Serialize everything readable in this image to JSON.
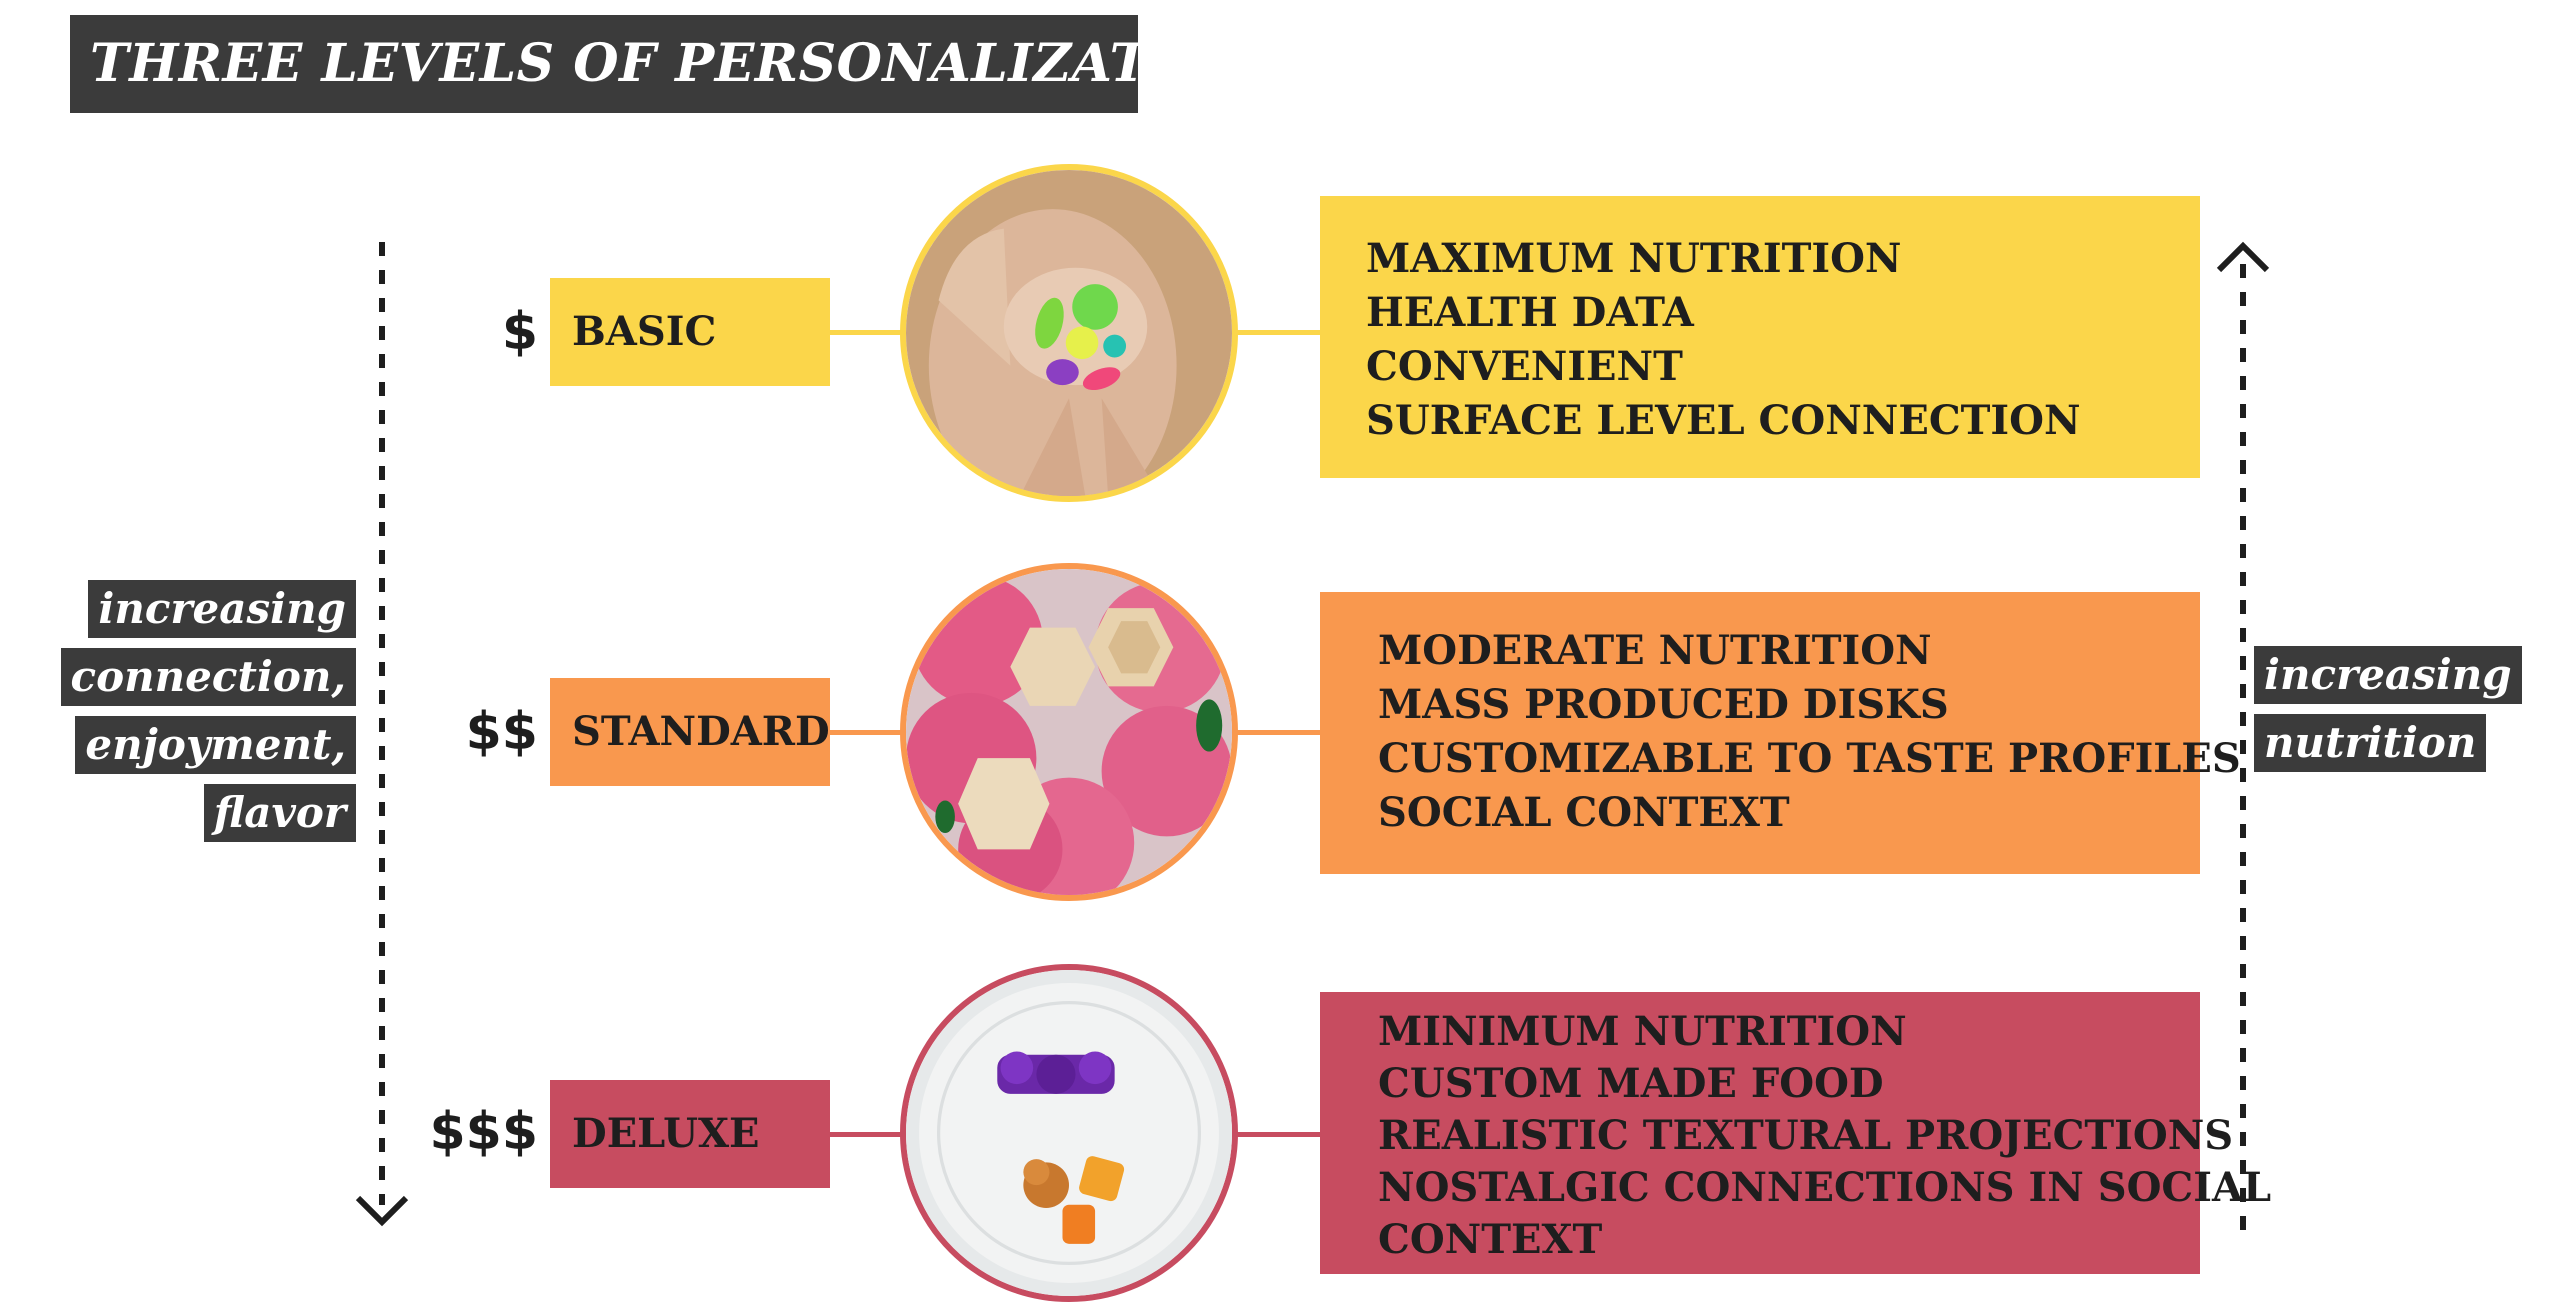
{
  "title": "THREE LEVELS OF PERSONALIZATION",
  "left_tag": [
    "increasing",
    "connection,",
    "enjoyment,",
    "flavor"
  ],
  "right_tag": [
    "increasing",
    "nutrition"
  ],
  "colors": {
    "basic": "#fbd64a",
    "standard": "#f9984e",
    "deluxe": "#c74c60",
    "dark": "#3b3b3b"
  },
  "levels": [
    {
      "price": "$",
      "label": "BASIC",
      "photo": "pills-in-hand-photo",
      "lines": [
        "MAXIMUM NUTRITION",
        "HEALTH DATA",
        "CONVENIENT",
        "SURFACE LEVEL CONNECTION"
      ]
    },
    {
      "price": "$$",
      "label": "STANDARD",
      "photo": "pink-disks-photo",
      "lines": [
        "MODERATE NUTRITION",
        "MASS PRODUCED DISKS",
        "CUSTOMIZABLE TO TASTE PROFILES",
        "SOCIAL CONTEXT"
      ]
    },
    {
      "price": "$$$",
      "label": "DELUXE",
      "photo": "plated-food-photo",
      "lines": [
        "MINIMUM NUTRITION",
        "CUSTOM MADE FOOD",
        "REALISTIC TEXTURAL PROJECTIONS",
        "NOSTALGIC CONNECTIONS IN SOCIAL",
        "CONTEXT"
      ]
    }
  ]
}
